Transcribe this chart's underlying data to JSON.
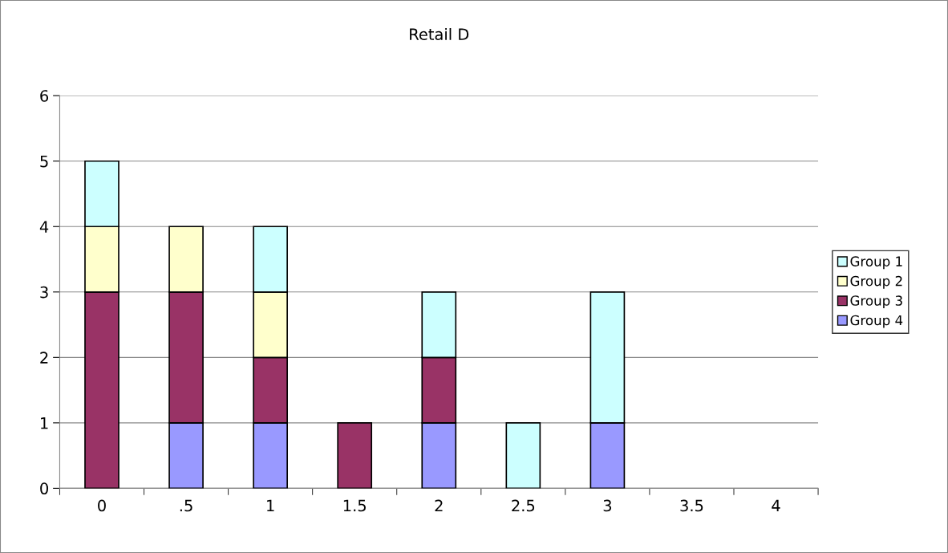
{
  "chart_data": {
    "type": "bar",
    "title": "Retail D",
    "stacked": true,
    "categories": [
      "0",
      ".5",
      "1",
      "1.5",
      "2",
      "2.5",
      "3",
      "3.5",
      "4"
    ],
    "series": [
      {
        "name": "Group 4",
        "color": "#9999ff",
        "values": [
          null,
          1,
          1,
          null,
          1,
          null,
          1,
          null,
          null
        ]
      },
      {
        "name": "Group 3",
        "color": "#993366",
        "values": [
          3,
          2,
          1,
          1,
          1,
          null,
          null,
          null,
          null
        ]
      },
      {
        "name": "Group 2",
        "color": "#ffffcc",
        "values": [
          1,
          1,
          1,
          null,
          null,
          null,
          null,
          null,
          null
        ]
      },
      {
        "name": "Group 1",
        "color": "#ccffff",
        "values": [
          1,
          null,
          1,
          null,
          1,
          1,
          2,
          null,
          null
        ]
      }
    ],
    "ylim": [
      0,
      6
    ],
    "yticks": [
      0,
      1,
      2,
      3,
      4,
      5,
      6
    ],
    "grid": "y",
    "legend": "right"
  }
}
